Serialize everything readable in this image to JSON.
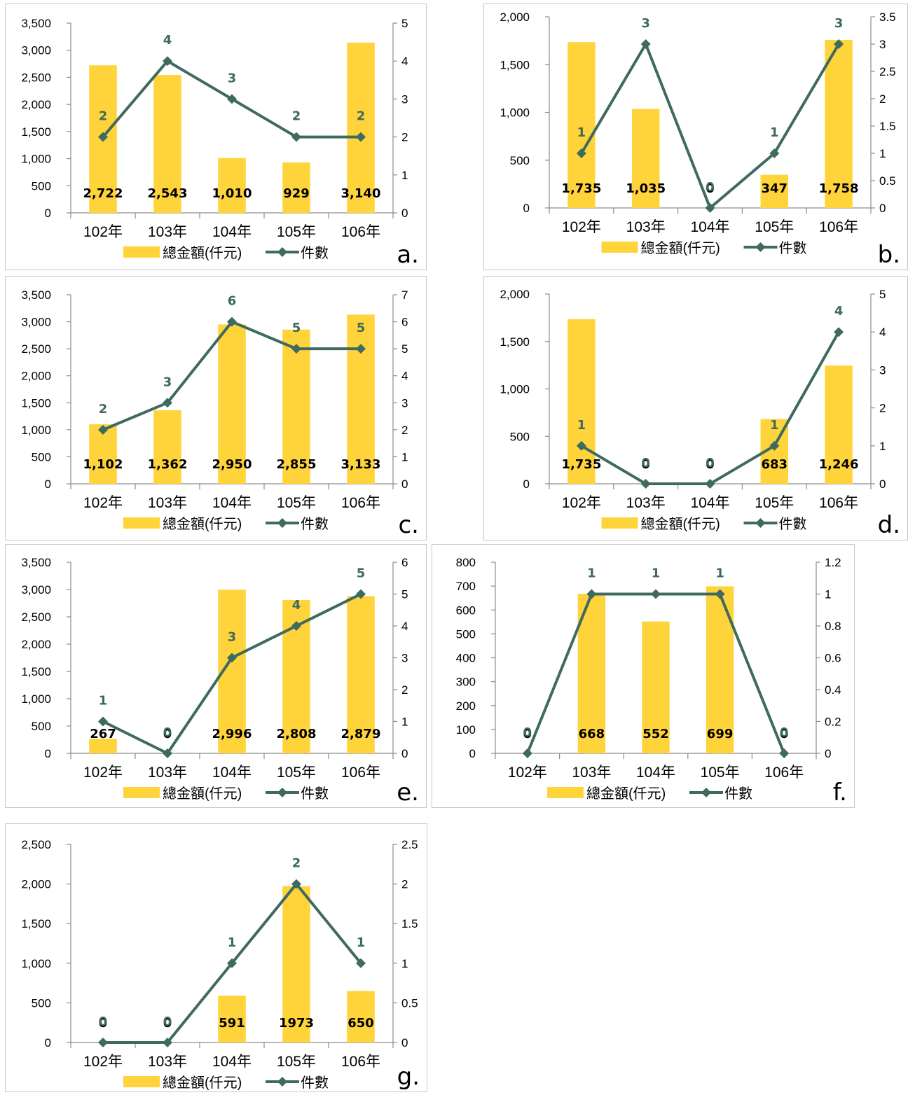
{
  "colors": {
    "bar": "#ffd43b",
    "line": "#3f6a5f",
    "axis": "#8c8c8c"
  },
  "chart_data": [
    {
      "type": "bar",
      "panel_label": "a.",
      "categories": [
        "102年",
        "103年",
        "104年",
        "105年",
        "106年"
      ],
      "series": [
        {
          "name": "總金額(仟元)",
          "type": "bar",
          "axis": "left",
          "values": [
            2722,
            2543,
            1010,
            929,
            3140
          ]
        },
        {
          "name": "件數",
          "type": "line",
          "axis": "right",
          "values": [
            2,
            4,
            3,
            2,
            2
          ]
        }
      ],
      "bar_labels": [
        "2,722",
        "2,543",
        "1,010",
        "929",
        "3,140"
      ],
      "line_labels": [
        "2",
        "4",
        "3",
        "2",
        "2"
      ],
      "ylim": [
        0,
        3500
      ],
      "yticks": [
        "0",
        "500",
        "1,000",
        "1,500",
        "2,000",
        "2,500",
        "3,000",
        "3,500"
      ],
      "y2lim": [
        0,
        5
      ],
      "y2ticks": [
        "0",
        "1",
        "2",
        "3",
        "4",
        "5"
      ],
      "legend_placement": "bottom"
    },
    {
      "type": "bar",
      "panel_label": "b.",
      "categories": [
        "102年",
        "103年",
        "104年",
        "105年",
        "106年"
      ],
      "series": [
        {
          "name": "總金額(仟元)",
          "type": "bar",
          "axis": "left",
          "values": [
            1735,
            1035,
            0,
            347,
            1758
          ]
        },
        {
          "name": "件數",
          "type": "line",
          "axis": "right",
          "values": [
            1,
            3,
            0,
            1,
            3
          ]
        }
      ],
      "bar_labels": [
        "1,735",
        "1,035",
        "0",
        "347",
        "1,758"
      ],
      "line_labels": [
        "1",
        "3",
        "0",
        "1",
        "3"
      ],
      "ylim": [
        0,
        2000
      ],
      "yticks": [
        "0",
        "500",
        "1,000",
        "1,500",
        "2,000"
      ],
      "y2lim": [
        0,
        3.5
      ],
      "y2ticks": [
        "0",
        "0.5",
        "1",
        "1.5",
        "2",
        "2.5",
        "3",
        "3.5"
      ],
      "legend_placement": "bottom"
    },
    {
      "type": "bar",
      "panel_label": "c.",
      "categories": [
        "102年",
        "103年",
        "104年",
        "105年",
        "106年"
      ],
      "series": [
        {
          "name": "總金額(仟元)",
          "type": "bar",
          "axis": "left",
          "values": [
            1102,
            1362,
            2950,
            2855,
            3133
          ]
        },
        {
          "name": "件數",
          "type": "line",
          "axis": "right",
          "values": [
            2,
            3,
            6,
            5,
            5
          ]
        }
      ],
      "bar_labels": [
        "1,102",
        "1,362",
        "2,950",
        "2,855",
        "3,133"
      ],
      "line_labels": [
        "2",
        "3",
        "6",
        "5",
        "5"
      ],
      "ylim": [
        0,
        3500
      ],
      "yticks": [
        "0",
        "500",
        "1,000",
        "1,500",
        "2,000",
        "2,500",
        "3,000",
        "3,500"
      ],
      "y2lim": [
        0,
        7
      ],
      "y2ticks": [
        "0",
        "1",
        "2",
        "3",
        "4",
        "5",
        "6",
        "7"
      ],
      "legend_placement": "bottom"
    },
    {
      "type": "bar",
      "panel_label": "d.",
      "categories": [
        "102年",
        "103年",
        "104年",
        "105年",
        "106年"
      ],
      "series": [
        {
          "name": "總金額(仟元)",
          "type": "bar",
          "axis": "left",
          "values": [
            1735,
            0,
            0,
            683,
            1246
          ]
        },
        {
          "name": "件數",
          "type": "line",
          "axis": "right",
          "values": [
            1,
            0,
            0,
            1,
            4
          ]
        }
      ],
      "bar_labels": [
        "1,735",
        "0",
        "0",
        "683",
        "1,246"
      ],
      "line_labels": [
        "1",
        "0",
        "0",
        "1",
        "4"
      ],
      "ylim": [
        0,
        2000
      ],
      "yticks": [
        "0",
        "500",
        "1,000",
        "1,500",
        "2,000"
      ],
      "y2lim": [
        0,
        5
      ],
      "y2ticks": [
        "0",
        "1",
        "2",
        "3",
        "4",
        "5"
      ],
      "legend_placement": "bottom"
    },
    {
      "type": "bar",
      "panel_label": "e.",
      "categories": [
        "102年",
        "103年",
        "104年",
        "105年",
        "106年"
      ],
      "series": [
        {
          "name": "總金額(仟元)",
          "type": "bar",
          "axis": "left",
          "values": [
            267,
            0,
            2996,
            2808,
            2879
          ]
        },
        {
          "name": "件數",
          "type": "line",
          "axis": "right",
          "values": [
            1,
            0,
            3,
            4,
            5
          ]
        }
      ],
      "bar_labels": [
        "267",
        "0",
        "2,996",
        "2,808",
        "2,879"
      ],
      "line_labels": [
        "1",
        "0",
        "3",
        "4",
        "5"
      ],
      "ylim": [
        0,
        3500
      ],
      "yticks": [
        "0",
        "500",
        "1,000",
        "1,500",
        "2,000",
        "2,500",
        "3,000",
        "3,500"
      ],
      "y2lim": [
        0,
        6
      ],
      "y2ticks": [
        "0",
        "1",
        "2",
        "3",
        "4",
        "5",
        "6"
      ],
      "legend_placement": "bottom"
    },
    {
      "type": "bar",
      "panel_label": "f.",
      "categories": [
        "102年",
        "103年",
        "104年",
        "105年",
        "106年"
      ],
      "series": [
        {
          "name": "總金額(仟元)",
          "type": "bar",
          "axis": "left",
          "values": [
            0,
            668,
            552,
            699,
            0
          ]
        },
        {
          "name": "件數",
          "type": "line",
          "axis": "right",
          "values": [
            0,
            1,
            1,
            1,
            0
          ]
        }
      ],
      "bar_labels": [
        "0",
        "668",
        "552",
        "699",
        "0"
      ],
      "line_labels": [
        "0",
        "1",
        "1",
        "1",
        "0"
      ],
      "ylim": [
        0,
        800
      ],
      "yticks": [
        "0",
        "100",
        "200",
        "300",
        "400",
        "500",
        "600",
        "700",
        "800"
      ],
      "y2lim": [
        0,
        1.2
      ],
      "y2ticks": [
        "0",
        "0.2",
        "0.4",
        "0.6",
        "0.8",
        "1",
        "1.2"
      ],
      "legend_placement": "bottom"
    },
    {
      "type": "bar",
      "panel_label": "g.",
      "categories": [
        "102年",
        "103年",
        "104年",
        "105年",
        "106年"
      ],
      "series": [
        {
          "name": "總金額(仟元)",
          "type": "bar",
          "axis": "left",
          "values": [
            0,
            0,
            591,
            1973,
            650
          ]
        },
        {
          "name": "件數",
          "type": "line",
          "axis": "right",
          "values": [
            0,
            0,
            1,
            2,
            1
          ]
        }
      ],
      "bar_labels": [
        "0",
        "0",
        "591",
        "1973",
        "650"
      ],
      "line_labels": [
        "0",
        "0",
        "1",
        "2",
        "1"
      ],
      "ylim": [
        0,
        2500
      ],
      "yticks": [
        "0",
        "500",
        "1,000",
        "1,500",
        "2,000",
        "2,500"
      ],
      "y2lim": [
        0,
        2.5
      ],
      "y2ticks": [
        "0",
        "0.5",
        "1",
        "1.5",
        "2",
        "2.5"
      ],
      "legend_placement": "bottom"
    }
  ]
}
